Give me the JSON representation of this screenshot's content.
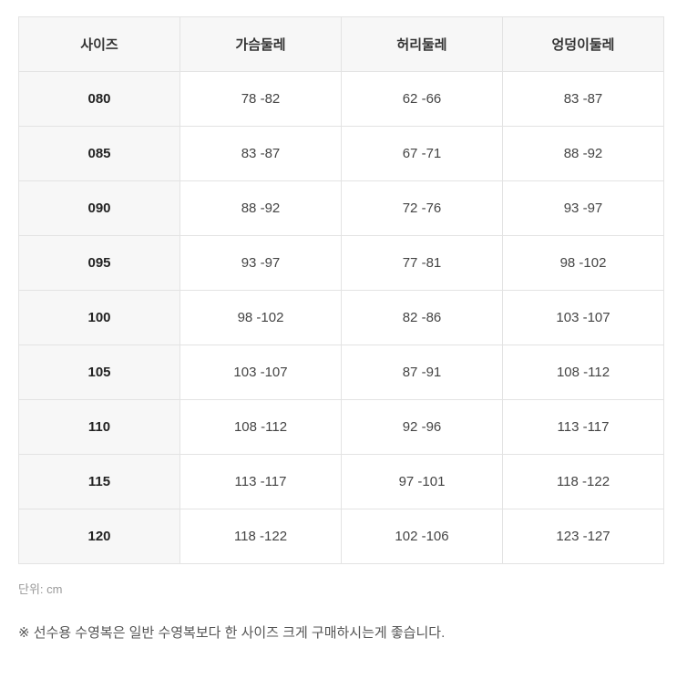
{
  "table": {
    "headers": [
      "사이즈",
      "가슴둘레",
      "허리둘레",
      "엉덩이둘레"
    ],
    "rows": [
      [
        "080",
        "78 -82",
        "62 -66",
        "83 -87"
      ],
      [
        "085",
        "83 -87",
        "67 -71",
        "88 -92"
      ],
      [
        "090",
        "88 -92",
        "72 -76",
        "93 -97"
      ],
      [
        "095",
        "93 -97",
        "77 -81",
        "98 -102"
      ],
      [
        "100",
        "98 -102",
        "82 -86",
        "103 -107"
      ],
      [
        "105",
        "103 -107",
        "87 -91",
        "108 -112"
      ],
      [
        "110",
        "108 -112",
        "92 -96",
        "113 -117"
      ],
      [
        "115",
        "113 -117",
        "97 -101",
        "118 -122"
      ],
      [
        "120",
        "118 -122",
        "102 -106",
        "123 -127"
      ]
    ]
  },
  "unit": "단위: cm",
  "note": "※ 선수용 수영복은 일반 수영복보다 한 사이즈 크게 구매하시는게 좋습니다."
}
